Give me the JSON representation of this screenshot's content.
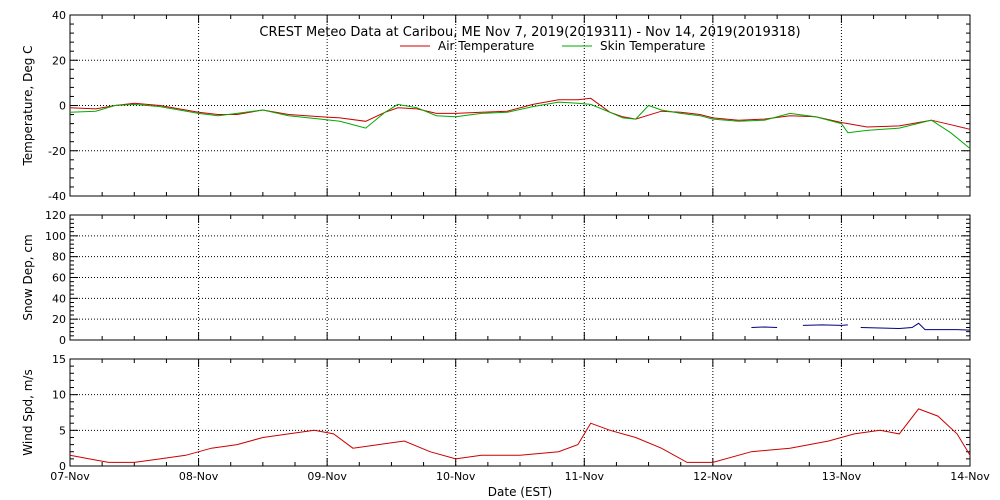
{
  "chart_data": [
    {
      "type": "line",
      "title": "CREST Meteo Data at Caribou, ME   Nov  7, 2019(2019311) - Nov 14, 2019(2019318)",
      "ylabel": "Temperature, Deg C",
      "ylim": [
        -40,
        40
      ],
      "yticks": [
        -40,
        -20,
        0,
        20,
        40
      ],
      "xlim_days": [
        0,
        7
      ],
      "grid": true,
      "legend": "top-center",
      "series": [
        {
          "name": "Air Temperature",
          "color": "#cc0000",
          "x_days": [
            0,
            0.2,
            0.35,
            0.5,
            0.7,
            1.0,
            1.15,
            1.3,
            1.5,
            1.7,
            1.95,
            2.1,
            2.3,
            2.45,
            2.55,
            2.7,
            2.85,
            3.0,
            3.2,
            3.4,
            3.6,
            3.8,
            3.95,
            4.05,
            4.2,
            4.3,
            4.4,
            4.6,
            4.75,
            4.9,
            5.0,
            5.2,
            5.4,
            5.6,
            5.8,
            6.0,
            6.2,
            6.45,
            6.7,
            6.85,
            7.0
          ],
          "values": [
            -1,
            -1.5,
            0,
            1,
            0,
            -3,
            -4,
            -4,
            -2,
            -4,
            -5,
            -5.5,
            -7,
            -3,
            -1,
            -1.5,
            -3.5,
            -3.5,
            -3,
            -2.5,
            0.5,
            2.5,
            2.5,
            3.2,
            -3,
            -5,
            -6,
            -2.5,
            -3,
            -4,
            -5.5,
            -6.5,
            -6,
            -4.5,
            -5,
            -7.5,
            -9.5,
            -9,
            -6.5,
            -8.5,
            -10.5
          ]
        },
        {
          "name": "Skin Temperature",
          "color": "#00aa00",
          "x_days": [
            0,
            0.2,
            0.35,
            0.5,
            0.7,
            1.0,
            1.15,
            1.3,
            1.5,
            1.7,
            1.95,
            2.1,
            2.3,
            2.45,
            2.55,
            2.7,
            2.85,
            3.0,
            3.2,
            3.4,
            3.6,
            3.8,
            3.95,
            4.05,
            4.2,
            4.3,
            4.4,
            4.5,
            4.6,
            4.75,
            4.9,
            5.0,
            5.2,
            5.4,
            5.6,
            5.8,
            6.0,
            6.05,
            6.2,
            6.45,
            6.7,
            6.85,
            7.0
          ],
          "values": [
            -3,
            -2.5,
            0,
            0.5,
            -0.5,
            -3.5,
            -4.5,
            -3.5,
            -2,
            -4.5,
            -6,
            -7,
            -10,
            -3,
            0.5,
            -1,
            -4.5,
            -5,
            -3.5,
            -3,
            -0.5,
            1.5,
            1,
            0.5,
            -3,
            -5.5,
            -6,
            0,
            -2,
            -3.5,
            -4.5,
            -6,
            -7,
            -6.5,
            -3.5,
            -5,
            -8,
            -12,
            -11,
            -10,
            -6.5,
            -12,
            -19
          ]
        }
      ]
    },
    {
      "type": "line",
      "ylabel": "Snow Dep, cm",
      "ylim": [
        0,
        120
      ],
      "yticks": [
        0,
        20,
        40,
        60,
        80,
        100,
        120
      ],
      "xlim_days": [
        0,
        7
      ],
      "grid": true,
      "series": [
        {
          "color": "#000080",
          "segments": [
            {
              "x_days": [
                5.3,
                5.4,
                5.5
              ],
              "values": [
                12,
                12.5,
                12
              ]
            },
            {
              "x_days": [
                5.7,
                5.85,
                6.0,
                6.05
              ],
              "values": [
                14,
                14.5,
                14,
                14.5
              ]
            },
            {
              "x_days": [
                6.15,
                6.3,
                6.45,
                6.55,
                6.6,
                6.65,
                6.75,
                6.9,
                7.0
              ],
              "values": [
                12,
                11.5,
                11,
                12,
                16,
                10,
                10,
                10,
                9.5
              ]
            }
          ]
        }
      ]
    },
    {
      "type": "line",
      "ylabel": "Wind Spd, m/s",
      "xlabel": "Date (EST)",
      "ylim": [
        0,
        15
      ],
      "yticks": [
        0,
        5,
        10,
        15
      ],
      "xlim_days": [
        0,
        7
      ],
      "x_tick_labels": [
        "07-Nov",
        "08-Nov",
        "09-Nov",
        "10-Nov",
        "11-Nov",
        "12-Nov",
        "13-Nov",
        "14-Nov"
      ],
      "grid": true,
      "series": [
        {
          "color": "#cc0000",
          "x_days": [
            0,
            0.15,
            0.3,
            0.5,
            0.7,
            0.9,
            1.1,
            1.3,
            1.5,
            1.7,
            1.9,
            2.05,
            2.2,
            2.4,
            2.6,
            2.8,
            3.0,
            3.2,
            3.5,
            3.8,
            3.95,
            4.05,
            4.2,
            4.4,
            4.6,
            4.8,
            5.0,
            5.3,
            5.6,
            5.9,
            6.1,
            6.3,
            6.45,
            6.6,
            6.75,
            6.9,
            7.0
          ],
          "values": [
            1.5,
            1,
            0.5,
            0.5,
            1,
            1.5,
            2.5,
            3,
            4,
            4.5,
            5,
            4.5,
            2.5,
            3,
            3.5,
            2,
            1,
            1.5,
            1.5,
            2,
            3,
            6,
            5,
            4,
            2.5,
            0.5,
            0.5,
            2,
            2.5,
            3.5,
            4.5,
            5,
            4.5,
            8,
            7,
            4.5,
            1.5
          ]
        }
      ]
    }
  ]
}
